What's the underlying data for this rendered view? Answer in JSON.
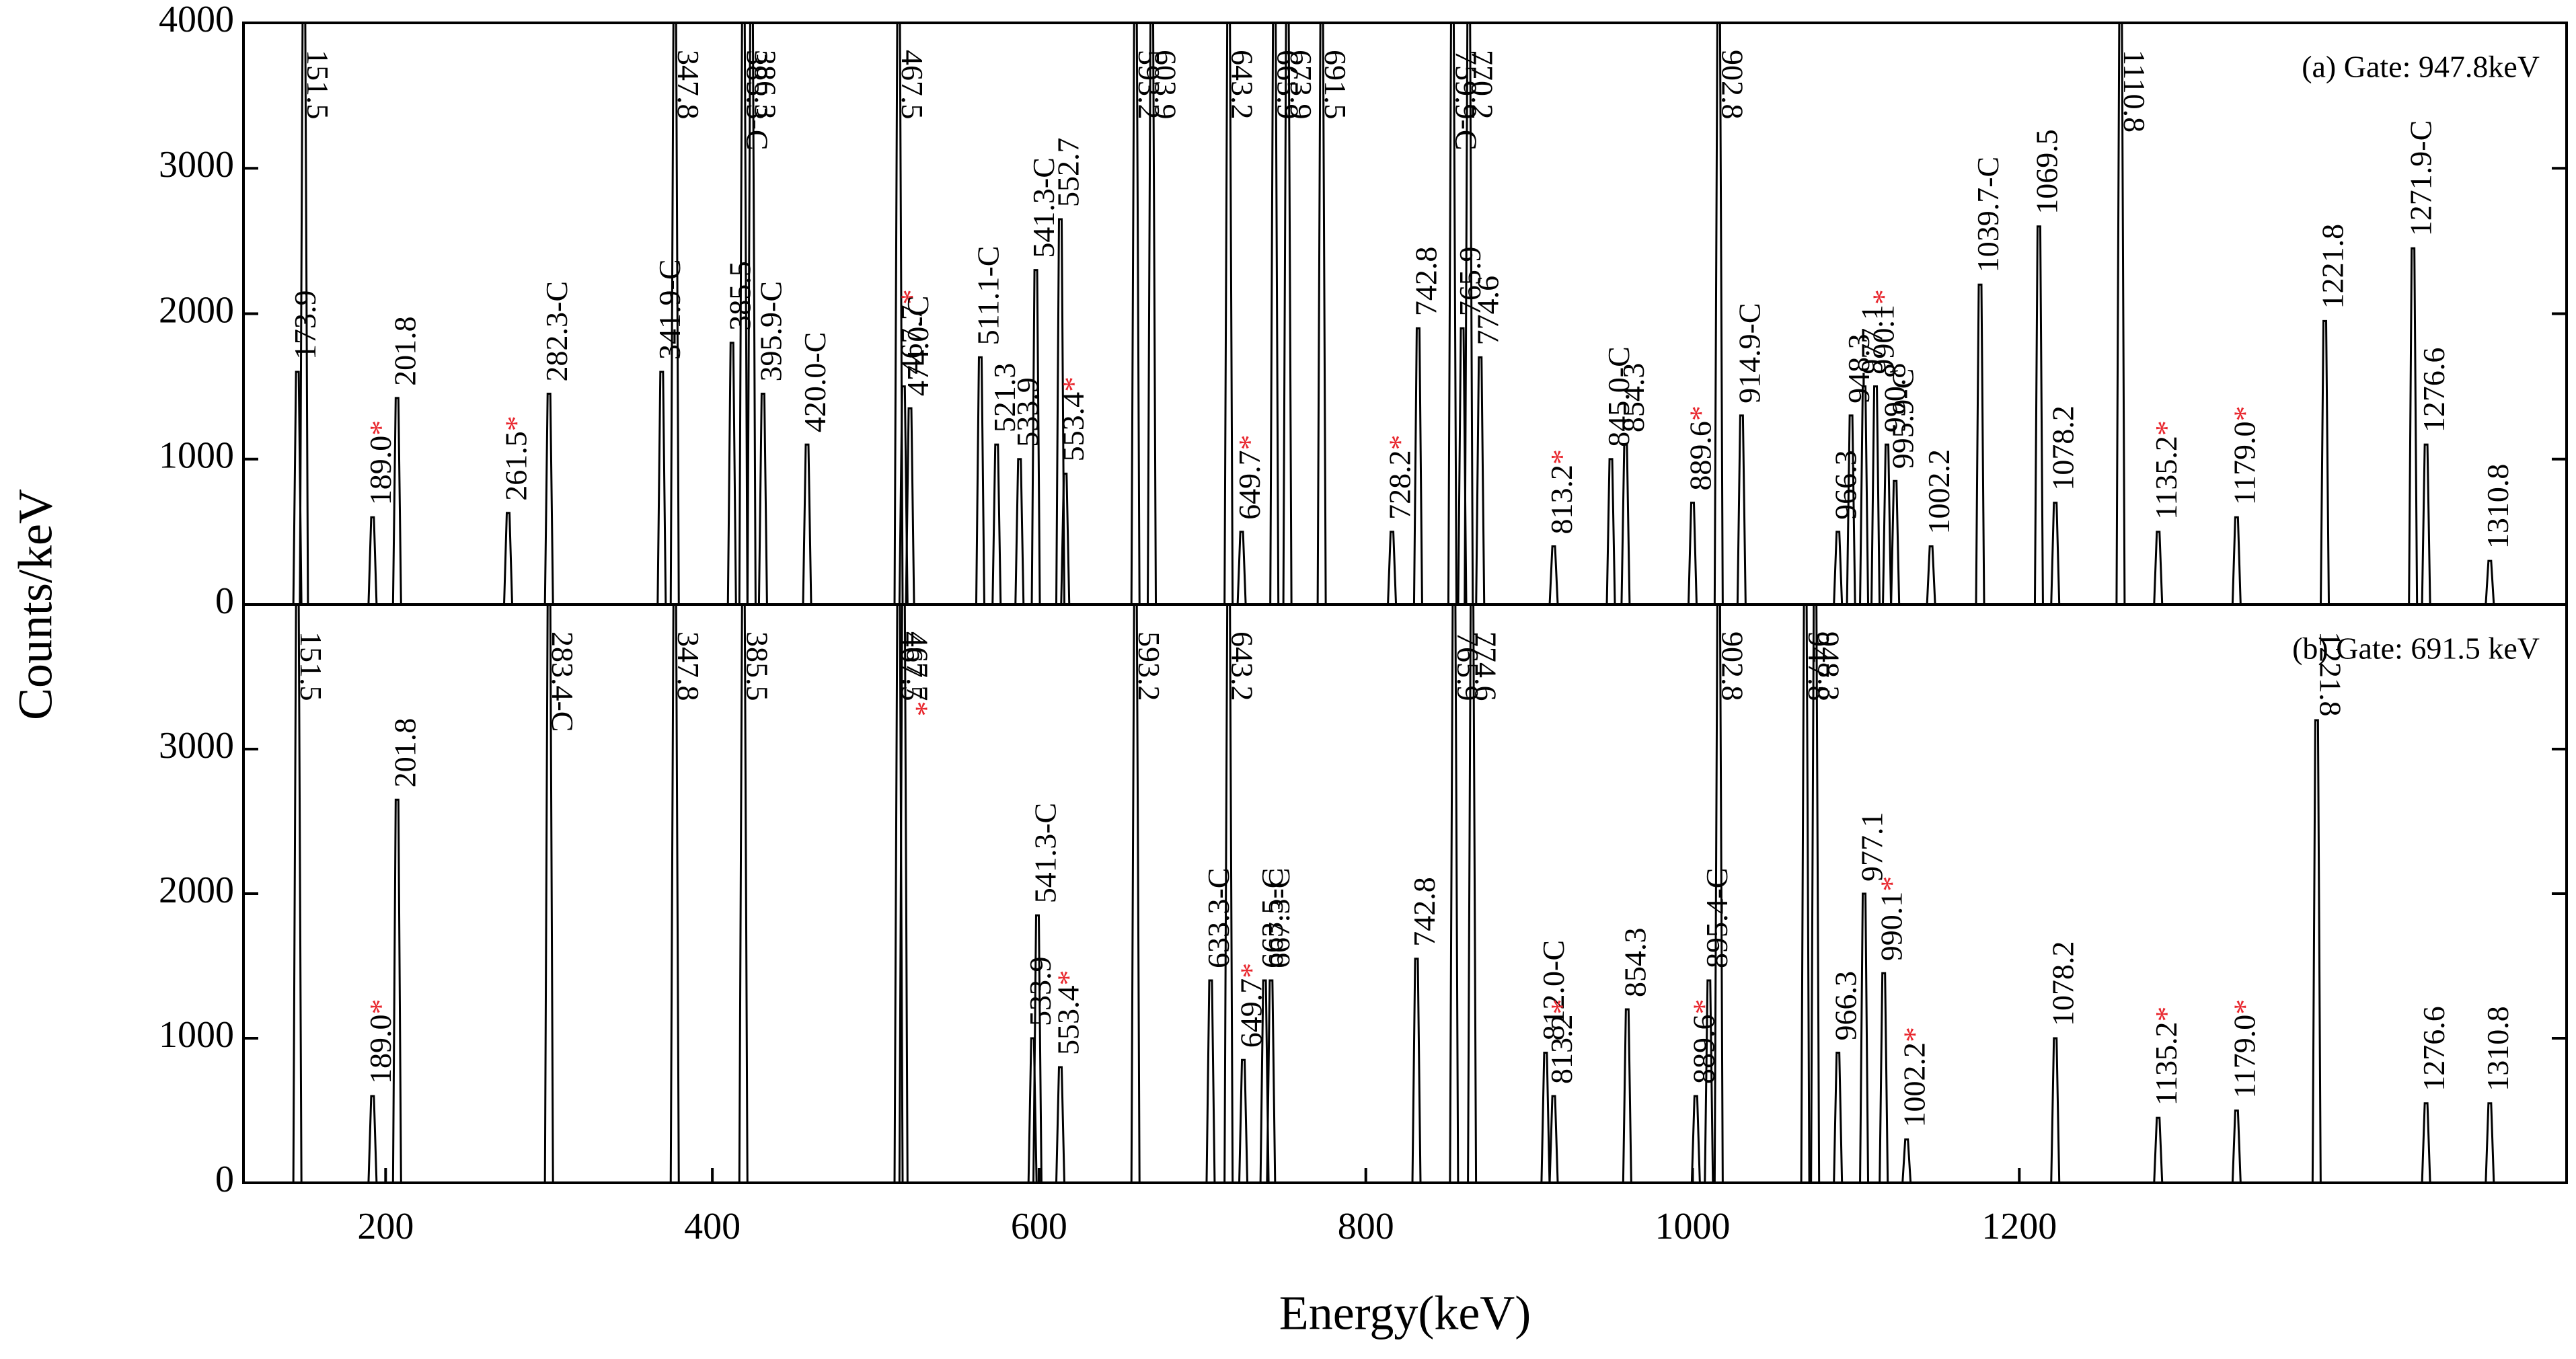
{
  "chart_data": [
    {
      "type": "peaks",
      "title": "(a) Gate: 947.8keV",
      "ylabel": "Counts/keV",
      "star": "*",
      "star_color": "#e8262d",
      "color": "#000000",
      "xlim": [
        113,
        1535
      ],
      "ylim": [
        0,
        4000
      ],
      "yticks": [
        0,
        1000,
        2000,
        3000,
        4000
      ],
      "x": [
        150,
        146,
        192,
        207,
        275,
        300,
        369,
        377,
        419,
        412,
        424,
        431,
        458,
        514,
        517,
        521,
        564,
        574,
        588,
        598,
        613,
        616,
        659,
        669,
        716,
        724,
        744,
        752,
        773,
        816,
        832,
        853,
        859,
        863,
        870,
        915,
        950,
        959,
        1000,
        1016,
        1030,
        1089,
        1097,
        1105,
        1112,
        1119,
        1124,
        1146,
        1176,
        1212,
        1222,
        1262,
        1285,
        1333,
        1387,
        1441,
        1449,
        1488
      ],
      "values": [
        4000,
        1600,
        600,
        1420,
        630,
        1450,
        1600,
        4000,
        4000,
        1800,
        4000,
        1450,
        1100,
        4000,
        1500,
        1350,
        1700,
        1100,
        1000,
        2300,
        2650,
        900,
        4000,
        4000,
        4000,
        500,
        4000,
        4000,
        4000,
        500,
        1900,
        4000,
        1900,
        4000,
        1700,
        400,
        1000,
        1100,
        700,
        4000,
        1300,
        500,
        1300,
        1500,
        1500,
        1100,
        850,
        400,
        2200,
        2600,
        700,
        4000,
        500,
        600,
        1950,
        2450,
        1100,
        300
      ],
      "labels": [
        "151.5",
        "173.9",
        "189.0",
        "201.8",
        "261.5",
        "282.3-C",
        "341.9-C",
        "347.8",
        "385.3-C",
        "385.5",
        "386.3",
        "395.9-C",
        "420.0-C",
        "467.5",
        "467.7",
        "474.0-C",
        "511.1-C",
        "521.3",
        "533.9",
        "541.3-C",
        "552.7",
        "553.4",
        "593.2",
        "603.9",
        "643.2",
        "649.7",
        "665.9",
        "673.9",
        "691.5",
        "728.2",
        "742.8",
        "759.9-C",
        "765.9",
        "770.2",
        "774.6",
        "813.2",
        "845.0-C",
        "854.3",
        "889.6",
        "902.8",
        "914.9-C",
        "966.3",
        "948.3",
        "977.1",
        "990.1",
        "990.8",
        "995.9-C",
        "1002.2",
        "1039.7-C",
        "1069.5",
        "1078.2",
        "1110.8",
        "1135.2",
        "1179.0",
        "1221.8",
        "1271.9-C",
        "1276.6",
        "1310.8"
      ],
      "starred": [
        false,
        false,
        true,
        false,
        true,
        false,
        false,
        false,
        false,
        false,
        false,
        false,
        false,
        false,
        true,
        false,
        false,
        false,
        false,
        false,
        false,
        true,
        false,
        false,
        false,
        true,
        false,
        false,
        false,
        true,
        false,
        false,
        false,
        false,
        false,
        true,
        false,
        false,
        true,
        false,
        false,
        false,
        false,
        false,
        true,
        false,
        false,
        false,
        false,
        false,
        false,
        false,
        true,
        true,
        false,
        false,
        false,
        false
      ]
    },
    {
      "type": "peaks",
      "title": "(b) Gate: 691.5 keV",
      "xlabel": "Energy(keV)",
      "star": "*",
      "star_color": "#e8262d",
      "color": "#000000",
      "xlim": [
        113,
        1535
      ],
      "ylim": [
        0,
        4000
      ],
      "yticks": [
        0,
        1000,
        2000,
        3000
      ],
      "xticks": [
        200,
        400,
        600,
        800,
        1000,
        1200
      ],
      "x": [
        146,
        192,
        207,
        300,
        377,
        419,
        514,
        517,
        596,
        599,
        613,
        659,
        705,
        716,
        725,
        738,
        742,
        831,
        854,
        865,
        910,
        915,
        960,
        1002,
        1010,
        1016,
        1069,
        1075,
        1089,
        1105,
        1117,
        1131,
        1222,
        1285,
        1333,
        1382,
        1449,
        1488
      ],
      "values": [
        4000,
        600,
        2650,
        4000,
        4000,
        4000,
        4000,
        4000,
        1000,
        1850,
        800,
        4000,
        1400,
        4000,
        850,
        1400,
        1400,
        1550,
        4000,
        4000,
        900,
        600,
        1200,
        600,
        1400,
        4000,
        4000,
        4000,
        900,
        2000,
        1450,
        300,
        1000,
        450,
        500,
        3200,
        550,
        550
      ],
      "labels": [
        "151.5",
        "189.0",
        "201.8",
        "283.4-C",
        "347.8",
        "385.5",
        "467.5",
        "467.7",
        "533.9",
        "541.3-C",
        "553.4",
        "593.2",
        "633.3-C",
        "643.2",
        "649.7",
        "663.5-C",
        "667.3-C",
        "742.8",
        "765.9",
        "774.6",
        "812.0-C",
        "813.2",
        "854.3",
        "889.6",
        "895.4-C",
        "902.8",
        "947.8",
        "948.3",
        "966.3",
        "977.1",
        "990.1",
        "1002.2",
        "1078.2",
        "1135.2",
        "1179.0",
        "1221.8",
        "1276.6",
        "1310.8"
      ],
      "starred": [
        false,
        true,
        false,
        false,
        false,
        false,
        false,
        true,
        false,
        false,
        true,
        false,
        false,
        false,
        true,
        false,
        false,
        false,
        false,
        false,
        false,
        true,
        false,
        true,
        false,
        false,
        false,
        false,
        false,
        false,
        true,
        true,
        false,
        true,
        true,
        false,
        false,
        false
      ]
    }
  ]
}
